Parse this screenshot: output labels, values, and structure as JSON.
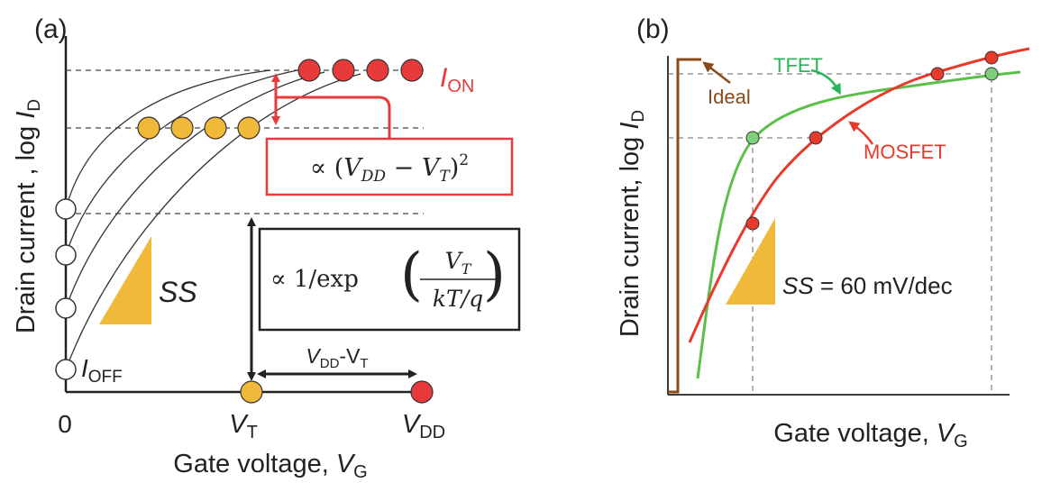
{
  "panel_a": {
    "label": "(a)",
    "ylabel_main": "Drain current , log ",
    "ylabel_var": "I",
    "ylabel_sub": "D",
    "xlabel_main": "Gate voltage, ",
    "xlabel_var": "V",
    "xlabel_sub": "G",
    "origin": "0",
    "vt_var": "V",
    "vt_sub": "T",
    "vdd_var": "V",
    "vdd_sub": "DD",
    "ion_var": "I",
    "ion_sub": "ON",
    "ioff_var": "I",
    "ioff_sub": "OFF",
    "ss_label": "SS",
    "span_label_main": "V",
    "span_label_sub1": "DD",
    "span_label_mid": "-V",
    "span_label_sub2": "T",
    "formula_on": "∝ (V_DD − V_T)²",
    "formula_off_prefix": "∝ 1/exp",
    "formula_off_num": "V_T",
    "formula_off_den": "kT/q",
    "colors": {
      "on_marker": "#e83a3a",
      "mid_marker": "#f0b93a",
      "on_box": "#e83a3a",
      "off_box": "#222222",
      "triangle": "#f0b93a"
    }
  },
  "panel_b": {
    "label": "(b)",
    "ylabel_main": "Drain current, log ",
    "ylabel_var": "I",
    "ylabel_sub": "D",
    "xlabel_main": "Gate voltage, ",
    "xlabel_var": "V",
    "xlabel_sub": "G",
    "ideal_label": "Ideal",
    "tfet_label": "TFET",
    "mosfet_label": "MOSFET",
    "ss_var": "SS",
    "ss_value": " = 60 mV/dec",
    "colors": {
      "ideal": "#8b4a1a",
      "tfet": "#5cbf4a",
      "mosfet": "#e83a2a",
      "tfet_text": "#2bb55a",
      "mosfet_text": "#e83a2a",
      "triangle": "#f0b93a"
    }
  }
}
